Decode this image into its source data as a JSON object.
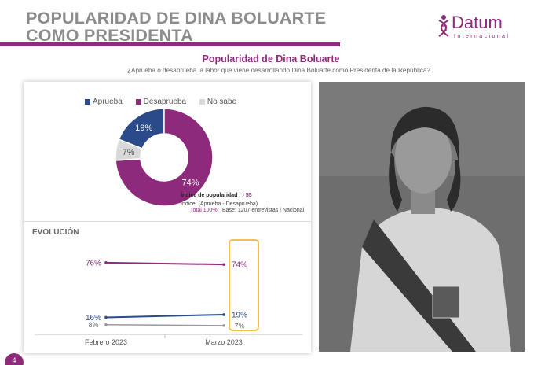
{
  "header": {
    "title_line1": "POPULARIDAD DE DINA BOLUARTE",
    "title_line2": "COMO PRESIDENTA",
    "logo_name": "Datum",
    "logo_sub": "Internacional"
  },
  "chart_title": "Popularidad de Dina Boluarte",
  "chart_subtitle": "¿Aprueba o desaprueba la labor que viene desarrollando Dina Boluarte como Presidenta de la República?",
  "colors": {
    "aprueba": "#2a4a8a",
    "desaprueba": "#8e2a7c",
    "nosabe": "#d9d9d9",
    "accent": "#8e2a7c",
    "highlight": "#f2c04c"
  },
  "notes": {
    "indice_label": "Índice de popularidad :",
    "indice_value": "- 55",
    "indice_formula": "Índice: (Aprueba - Desaprueba)",
    "total": "Total 100%.",
    "base": "Base: 1207 entrevistas | Nacional"
  },
  "evolucion_title": "EVOLUCIÓN",
  "page_number": "4",
  "chart_data": [
    {
      "type": "pie",
      "donut": true,
      "labels": [
        "Aprueba",
        "Desaprueba",
        "No sabe"
      ],
      "values": [
        19,
        74,
        7
      ],
      "value_labels": [
        "19%",
        "74%",
        "7%"
      ],
      "legend_position": "top"
    },
    {
      "type": "line",
      "categories": [
        "Febrero 2023",
        "Marzo 2023"
      ],
      "series": [
        {
          "name": "Desaprueba",
          "values": [
            76,
            74
          ],
          "labels": [
            "76%",
            "74%"
          ]
        },
        {
          "name": "Aprueba",
          "values": [
            16,
            19
          ],
          "labels": [
            "16%",
            "19%"
          ]
        },
        {
          "name": "No sabe",
          "values": [
            8,
            7
          ],
          "labels": [
            "8%",
            "7%"
          ]
        }
      ],
      "ylim": [
        0,
        100
      ]
    }
  ]
}
